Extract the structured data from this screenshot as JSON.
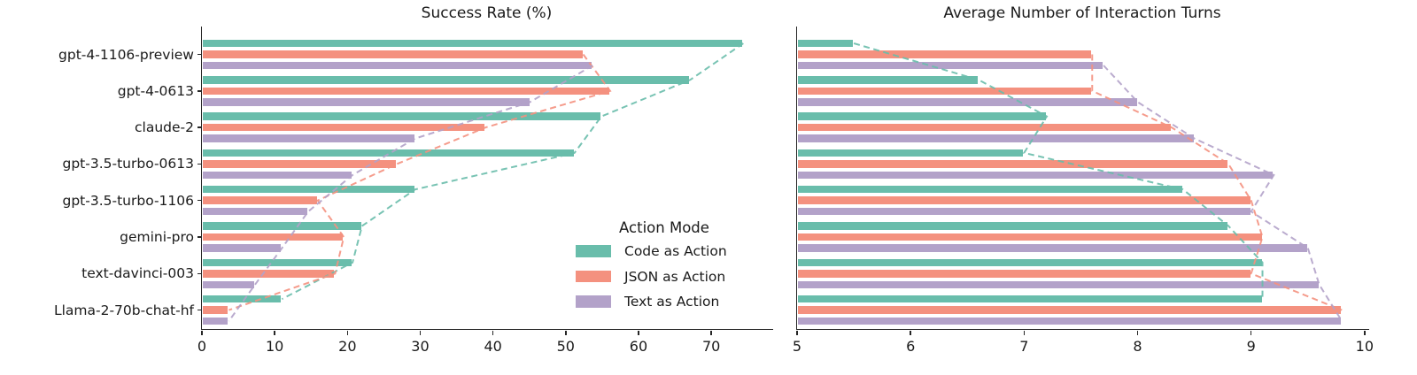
{
  "figure": {
    "background": "#ffffff",
    "text_color": "#1a1a1a",
    "spine_color": "#262626"
  },
  "legend": {
    "title": "Action Mode",
    "entries": [
      {
        "label": "Code as Action",
        "color": "#69bdab"
      },
      {
        "label": "JSON as Action",
        "color": "#f4917f"
      },
      {
        "label": "Text as Action",
        "color": "#b3a2c9"
      }
    ],
    "position": "lower right of left subplot",
    "frame": false
  },
  "chart_data": [
    {
      "type": "bar",
      "orientation": "horizontal",
      "title": "Success Rate (%)",
      "categories": [
        "gpt-4-1106-preview",
        "gpt-4-0613",
        "claude-2",
        "gpt-3.5-turbo-0613",
        "gpt-3.5-turbo-1106",
        "gemini-pro",
        "text-davinci-003",
        "Llama-2-70b-chat-hf"
      ],
      "series": [
        {
          "name": "Code as Action",
          "color": "#69bdab",
          "values": [
            74.4,
            67.1,
            54.9,
            51.2,
            29.3,
            22.0,
            20.7,
            11.0
          ]
        },
        {
          "name": "JSON as Action",
          "color": "#f4917f",
          "values": [
            52.4,
            56.1,
            39.0,
            26.8,
            15.9,
            19.5,
            18.3,
            3.7
          ]
        },
        {
          "name": "Text as Action",
          "color": "#b3a2c9",
          "values": [
            53.7,
            45.1,
            29.3,
            20.7,
            14.6,
            11.0,
            7.3,
            3.7
          ]
        }
      ],
      "xlim": [
        0,
        78.5
      ],
      "xticks": [
        0,
        10,
        20,
        30,
        40,
        50,
        60,
        70
      ],
      "grid": false,
      "category_labels_shown": true,
      "trend_lines": "dashed lines connect bar tips of each series"
    },
    {
      "type": "bar",
      "orientation": "horizontal",
      "title": "Average Number of Interaction Turns",
      "categories": [
        "gpt-4-1106-preview",
        "gpt-4-0613",
        "claude-2",
        "gpt-3.5-turbo-0613",
        "gpt-3.5-turbo-1106",
        "gemini-pro",
        "text-davinci-003",
        "Llama-2-70b-chat-hf"
      ],
      "series": [
        {
          "name": "Code as Action",
          "color": "#69bdab",
          "values": [
            5.5,
            6.6,
            7.2,
            7.0,
            8.4,
            8.8,
            9.1,
            9.1
          ]
        },
        {
          "name": "JSON as Action",
          "color": "#f4917f",
          "values": [
            7.6,
            7.6,
            8.3,
            8.8,
            9.0,
            9.1,
            9.0,
            9.8
          ]
        },
        {
          "name": "Text as Action",
          "color": "#b3a2c9",
          "values": [
            7.7,
            8.0,
            8.5,
            9.2,
            9.0,
            9.5,
            9.6,
            9.8
          ]
        }
      ],
      "xlim": [
        5,
        10.04
      ],
      "xticks": [
        5,
        6,
        7,
        8,
        9,
        10
      ],
      "grid": false,
      "category_labels_shown": false,
      "trend_lines": "dashed lines connect bar tips of each series"
    }
  ]
}
